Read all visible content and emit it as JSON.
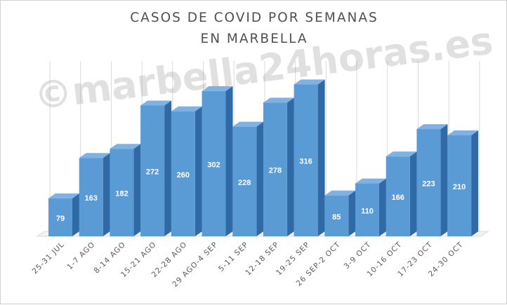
{
  "chart_data": {
    "type": "bar",
    "title_lines": [
      "CASOS DE COVID POR SEMANAS",
      "EN MARBELLA"
    ],
    "categories": [
      "25-31 JUL",
      "1-7 AGO",
      "8-14 AGO",
      "15-21 AGO",
      "22-28 AGO",
      "29 AGO-4 SEP",
      "5-11 SEP",
      "12-18 SEP",
      "19-25 SEP",
      "26 SEP-2 OCT",
      "3-9 OCT",
      "10-16 OCT",
      "17-23 OCT",
      "24-30 OCT"
    ],
    "values": [
      79,
      163,
      182,
      272,
      260,
      302,
      228,
      278,
      316,
      85,
      110,
      166,
      223,
      210
    ],
    "ylim": [
      0,
      350
    ],
    "grid": "vertical",
    "style": "3d-columns"
  },
  "colors": {
    "bar_front": "#5b9bd5",
    "bar_top": "#7fb2e3",
    "bar_side": "#2f6aa6",
    "grid": "#d9d9d9",
    "label": "#ffffff",
    "axis_text": "#595959"
  },
  "watermark": "©marbella24horas.es"
}
